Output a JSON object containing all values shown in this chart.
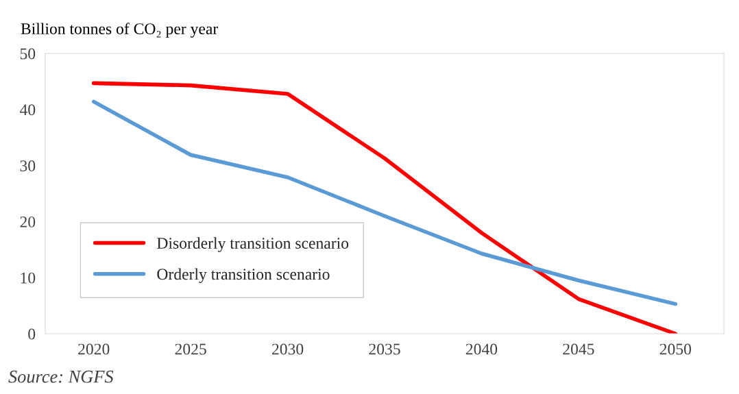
{
  "chart_data": {
    "type": "line",
    "ylabel": "Billion tonnes of CO₂ per year",
    "categories": [
      "2020",
      "2025",
      "2030",
      "2035",
      "2040",
      "2045",
      "2050"
    ],
    "series": [
      {
        "name": "Disorderly transition scenario",
        "color": "#ff0000",
        "values": [
          44.7,
          44.3,
          42.8,
          31.3,
          18.0,
          6.2,
          0
        ]
      },
      {
        "name": "Orderly transition scenario",
        "color": "#5b9bd5",
        "values": [
          41.4,
          31.9,
          27.9,
          21.0,
          14.3,
          9.5,
          5.3
        ]
      }
    ],
    "ylim": [
      0,
      50
    ],
    "yticks": [
      0,
      10,
      20,
      30,
      40,
      50
    ],
    "grid": false,
    "legend": "bottom left",
    "marker": "none",
    "line_style": "solid",
    "annotations": [
      "Source: NGFS"
    ]
  }
}
